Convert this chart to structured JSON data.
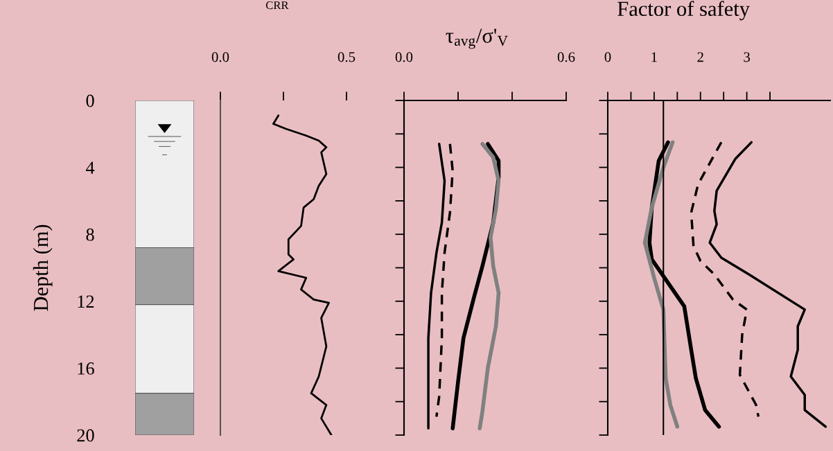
{
  "chart_data": [
    {
      "type": "bar",
      "stacked": true,
      "categories": [
        null
      ],
      "ylabel": "Depth (m)",
      "ylim": [
        20,
        0
      ],
      "yticks": [
        0,
        4,
        8,
        12,
        16,
        20
      ],
      "tick_labels": "y",
      "series": [
        {
          "color": "#efefef",
          "values": [
            8.8
          ]
        },
        {
          "color": "#a0a0a0",
          "values": [
            3.4
          ]
        },
        {
          "color": "#efefef",
          "values": [
            5.3
          ]
        },
        {
          "color": "#a0a0a0",
          "values": [
            2.5
          ]
        }
      ]
    },
    {
      "type": "line",
      "title": "CRR",
      "xlim": [
        0,
        0.5
      ],
      "xticks": [
        {
          "value": 0,
          "label": "0.0"
        },
        {
          "value": 0.25,
          "label": null
        },
        {
          "value": 0.5,
          "label": "0.5"
        }
      ],
      "ylim": [
        20,
        0
      ],
      "tick_labels": "x",
      "series": [
        {
          "color": "#000000",
          "x": [
            0.23,
            0.21,
            0.26,
            0.34,
            0.39,
            0.42,
            0.4,
            0.42,
            0.39,
            0.37,
            0.33,
            0.32,
            0.27,
            0.27,
            0.29,
            0.23,
            0.34,
            0.32,
            0.37,
            0.43,
            0.4,
            0.42,
            0.39,
            0.36,
            0.42,
            0.4,
            0.44
          ],
          "values": [
            0.9,
            1.4,
            1.7,
            2.1,
            2.4,
            2.8,
            3.1,
            4.4,
            5.1,
            5.9,
            6.4,
            7.5,
            8.3,
            9.2,
            9.5,
            10.2,
            10.6,
            11.3,
            11.9,
            12.1,
            13.0,
            14.7,
            16.5,
            17.5,
            18.2,
            19.0,
            20.0
          ]
        }
      ]
    },
    {
      "type": "line",
      "title": "τ$_{avg}$/σ'$_{V}$",
      "xlim": [
        0,
        0.6
      ],
      "xticks": [
        {
          "value": 0,
          "label": "0.0"
        },
        {
          "value": 0.2,
          "label": null
        },
        {
          "value": 0.4,
          "label": null
        },
        {
          "value": 0.6,
          "label": "0.6"
        }
      ],
      "ylim": [
        20,
        0
      ],
      "yticks": [
        {
          "value": 0,
          "label": null
        },
        {
          "value": 2,
          "label": null
        },
        {
          "value": 4,
          "label": null
        },
        {
          "value": 6,
          "label": null
        },
        {
          "value": 8,
          "label": null
        },
        {
          "value": 10,
          "label": null
        },
        {
          "value": 12,
          "label": null
        },
        {
          "value": 14,
          "label": null
        },
        {
          "value": 16,
          "label": null
        },
        {
          "value": 18,
          "label": null
        },
        {
          "value": 20,
          "label": null
        }
      ],
      "tick_labels": "x",
      "series": [
        {
          "color": "#000000",
          "x": [
            0.13,
            0.15,
            0.14,
            0.12,
            0.1,
            0.09,
            0.09,
            0.09
          ],
          "values": [
            2.6,
            4.8,
            7.3,
            9.1,
            11.5,
            14.2,
            17.7,
            19.6
          ]
        },
        {
          "color": "#000000",
          "line_style": "dashed",
          "x": [
            0.17,
            0.18,
            0.17,
            0.15,
            0.14,
            0.14,
            0.13,
            0.12
          ],
          "values": [
            2.6,
            4.2,
            6.7,
            9.1,
            11.5,
            14.2,
            17.7,
            18.9
          ]
        },
        {
          "color": "#000000",
          "x": [
            0.31,
            0.35,
            0.35,
            0.33,
            0.29,
            0.26,
            0.22,
            0.2,
            0.18
          ],
          "values": [
            2.6,
            3.6,
            4.6,
            7.3,
            9.9,
            11.7,
            14.2,
            16.8,
            19.6
          ]
        },
        {
          "color": "#808080",
          "x": [
            0.29,
            0.33,
            0.35,
            0.34,
            0.32,
            0.33,
            0.35,
            0.34,
            0.31,
            0.29,
            0.28
          ],
          "values": [
            2.6,
            3.4,
            4.8,
            6.5,
            8.2,
            9.9,
            11.5,
            13.5,
            16.0,
            18.6,
            19.6
          ]
        }
      ]
    },
    {
      "type": "line",
      "title": "Factor of safety",
      "xlim": [
        0,
        4.8
      ],
      "xticks": [
        0,
        {
          "value": 0.5,
          "label": null
        },
        1,
        {
          "value": 1.5,
          "label": null
        },
        2,
        {
          "value": 2.5,
          "label": null
        },
        3,
        {
          "value": 3.5,
          "label": null
        }
      ],
      "ylim": [
        20,
        0
      ],
      "yticks": [
        {
          "value": 0,
          "label": null
        },
        {
          "value": 2,
          "label": null
        },
        {
          "value": 4,
          "label": null
        },
        {
          "value": 6,
          "label": null
        },
        {
          "value": 8,
          "label": null
        },
        {
          "value": 10,
          "label": null
        },
        {
          "value": 12,
          "label": null
        },
        {
          "value": 14,
          "label": null
        },
        {
          "value": 16,
          "label": null
        },
        {
          "value": 18,
          "label": null
        },
        {
          "value": 20,
          "label": null
        }
      ],
      "tick_labels": "x",
      "ref_lines": [
        {
          "axis": "x",
          "value": 1.2,
          "color": "#000000"
        }
      ],
      "series": [
        {
          "color": "#000000",
          "x": [
            3.1,
            2.75,
            2.35,
            2.3,
            2.35,
            2.2,
            2.45,
            3.05,
            4.25,
            4.1,
            4.1,
            3.95,
            4.25,
            4.25,
            4.7
          ],
          "values": [
            2.5,
            3.5,
            5.4,
            6.6,
            7.4,
            8.5,
            9.4,
            10.4,
            12.5,
            13.5,
            14.9,
            16.5,
            17.6,
            18.5,
            19.5
          ]
        },
        {
          "color": "#000000",
          "line_style": "dashed",
          "x": [
            2.45,
            1.95,
            1.8,
            1.85,
            2.0,
            2.3,
            2.7,
            3.0,
            2.9,
            2.85,
            3.2,
            3.25
          ],
          "values": [
            2.5,
            5.0,
            6.7,
            8.7,
            9.6,
            10.4,
            11.9,
            12.5,
            14.0,
            16.4,
            18.2,
            18.9
          ]
        },
        {
          "color": "#000000",
          "x": [
            1.3,
            1.1,
            0.95,
            0.9,
            0.95,
            1.25,
            1.65,
            1.8,
            1.9,
            2.1,
            2.4
          ],
          "values": [
            2.5,
            3.6,
            6.4,
            8.5,
            9.5,
            10.7,
            12.3,
            14.9,
            16.6,
            18.5,
            19.5
          ]
        },
        {
          "color": "#808080",
          "x": [
            1.4,
            1.2,
            0.95,
            0.8,
            1.0,
            1.2,
            1.25,
            1.35,
            1.5
          ],
          "values": [
            2.5,
            4.0,
            6.4,
            8.5,
            10.6,
            12.5,
            16.6,
            18.2,
            19.5
          ]
        }
      ]
    }
  ]
}
